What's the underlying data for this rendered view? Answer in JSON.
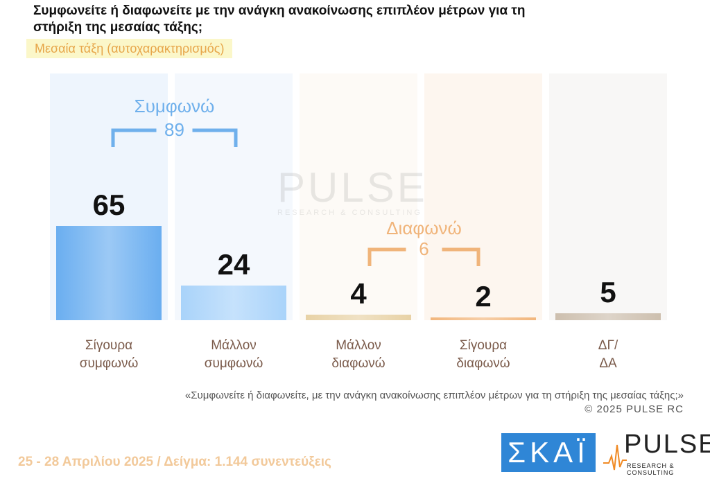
{
  "title": "Συμφωνείτε ή διαφωνείτε με την ανάγκη ανακοίνωσης επιπλέον μέτρων για τη στήριξη της μεσαίας τάξης;",
  "subtitle": "Μεσαία τάξη (αυτοχαρακτηρισμός)",
  "chart_data": {
    "type": "bar",
    "categories": [
      "Σίγουρα συμφωνώ",
      "Μάλλον συμφωνώ",
      "Μάλλον διαφωνώ",
      "Σίγουρα διαφωνώ",
      "ΔΓ/ ΔΑ"
    ],
    "category_lines": [
      [
        "Σίγουρα",
        "συμφωνώ"
      ],
      [
        "Μάλλον",
        "συμφωνώ"
      ],
      [
        "Μάλλον",
        "διαφωνώ"
      ],
      [
        "Σίγουρα",
        "διαφωνώ"
      ],
      [
        "ΔΓ/",
        "ΔΑ"
      ]
    ],
    "values": [
      65,
      24,
      4,
      2,
      5
    ],
    "value_labels": [
      "65",
      "24",
      "4",
      "2",
      "5"
    ],
    "ylim": [
      0,
      100
    ],
    "groups": [
      {
        "label": "Συμφωνώ",
        "total": "89",
        "color": "#6fb0ec"
      },
      {
        "label": "Διαφωνώ",
        "total": "6",
        "color": "#f0b47a"
      }
    ],
    "colors": [
      "#6aaef0",
      "#a9d3fa",
      "#e8d2a6",
      "#f2b67c",
      "#cdbfae"
    ]
  },
  "watermark": {
    "name": "PULSE",
    "sub": "RESEARCH & CONSULTING"
  },
  "question_note": "«Συμφωνείτε ή διαφωνείτε, με την ανάγκη ανακοίνωσης επιπλέον μέτρων για τη στήριξη της μεσαίας τάξης;»",
  "copyright": "©  2025  PULSE RC",
  "footer": "25 - 28 Απριλίου 2025  /  Δείγμα:  1.144 συνεντεύξεις",
  "logos": {
    "skai": "ΣΚΑΪ",
    "pulse": "PULSE",
    "pulse_sub": "RESEARCH & CONSULTING"
  }
}
